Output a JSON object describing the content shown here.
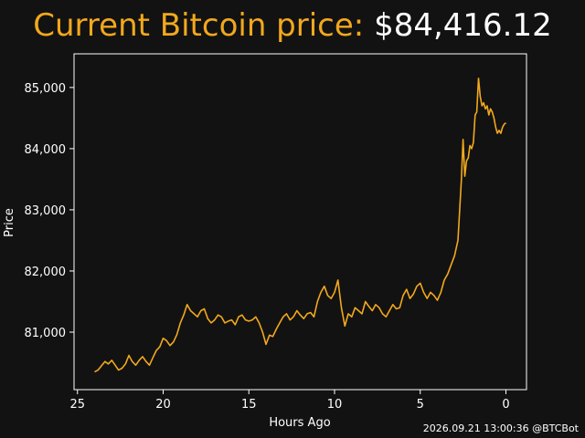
{
  "header": {
    "title_label": "Current Bitcoin price:",
    "title_price": "$84,416.12"
  },
  "footer": {
    "timestamp": "2026.09.21 13:00:36 @BTCBot"
  },
  "colors": {
    "background": "#121212",
    "line": "#f2a81d",
    "axes": "#ffffff",
    "title_label": "#f2a81d",
    "title_price": "#ffffff"
  },
  "chart_data": {
    "type": "line",
    "title": "Current Bitcoin price: $84,416.12",
    "xlabel": "Hours Ago",
    "ylabel": "Price",
    "x_reversed": true,
    "xlim": [
      25.2,
      -1.2
    ],
    "ylim": [
      80060,
      85550
    ],
    "x_ticks": [
      25,
      20,
      15,
      10,
      5,
      0
    ],
    "x_tick_labels": [
      "25",
      "20",
      "15",
      "10",
      "5",
      "0"
    ],
    "y_ticks": [
      81000,
      82000,
      83000,
      84000,
      85000
    ],
    "y_tick_labels": [
      "81,000",
      "82,000",
      "83,000",
      "84,000",
      "85,000"
    ],
    "grid": false,
    "legend": "none",
    "series": [
      {
        "x": [
          24.0,
          23.8,
          23.6,
          23.4,
          23.2,
          23.0,
          22.8,
          22.6,
          22.4,
          22.2,
          22.0,
          21.8,
          21.6,
          21.4,
          21.2,
          21.0,
          20.8,
          20.6,
          20.4,
          20.2,
          20.0,
          19.8,
          19.6,
          19.4,
          19.2,
          19.0,
          18.8,
          18.6,
          18.4,
          18.2,
          18.0,
          17.8,
          17.6,
          17.4,
          17.2,
          17.0,
          16.8,
          16.6,
          16.4,
          16.2,
          16.0,
          15.8,
          15.6,
          15.4,
          15.2,
          15.0,
          14.8,
          14.6,
          14.4,
          14.2,
          14.0,
          13.8,
          13.6,
          13.4,
          13.2,
          13.0,
          12.8,
          12.6,
          12.4,
          12.2,
          12.0,
          11.8,
          11.6,
          11.4,
          11.2,
          11.0,
          10.8,
          10.6,
          10.4,
          10.2,
          10.0,
          9.8,
          9.6,
          9.4,
          9.2,
          9.0,
          8.8,
          8.6,
          8.4,
          8.2,
          8.0,
          7.8,
          7.6,
          7.4,
          7.2,
          7.0,
          6.8,
          6.6,
          6.4,
          6.2,
          6.0,
          5.8,
          5.6,
          5.4,
          5.2,
          5.0,
          4.8,
          4.6,
          4.4,
          4.2,
          4.0,
          3.8,
          3.6,
          3.4,
          3.2,
          3.0,
          2.8,
          2.6,
          2.5,
          2.4,
          2.3,
          2.2,
          2.1,
          2.0,
          1.9,
          1.8,
          1.7,
          1.6,
          1.5,
          1.4,
          1.3,
          1.2,
          1.1,
          1.0,
          0.9,
          0.8,
          0.7,
          0.6,
          0.5,
          0.4,
          0.3,
          0.2,
          0.1,
          0.0
        ],
        "y": [
          80350,
          80380,
          80450,
          80520,
          80480,
          80540,
          80460,
          80380,
          80410,
          80480,
          80620,
          80520,
          80460,
          80540,
          80600,
          80520,
          80460,
          80580,
          80700,
          80760,
          80900,
          80860,
          80780,
          80840,
          80960,
          81150,
          81280,
          81450,
          81350,
          81300,
          81250,
          81350,
          81380,
          81220,
          81150,
          81200,
          81280,
          81250,
          81150,
          81180,
          81200,
          81120,
          81250,
          81280,
          81200,
          81180,
          81200,
          81250,
          81150,
          81000,
          80800,
          80950,
          80930,
          81050,
          81150,
          81250,
          81300,
          81200,
          81250,
          81350,
          81280,
          81220,
          81300,
          81320,
          81250,
          81500,
          81650,
          81750,
          81600,
          81550,
          81650,
          81850,
          81400,
          81100,
          81300,
          81250,
          81400,
          81350,
          81300,
          81500,
          81420,
          81350,
          81450,
          81400,
          81300,
          81250,
          81350,
          81450,
          81380,
          81400,
          81600,
          81700,
          81550,
          81620,
          81750,
          81800,
          81650,
          81550,
          81650,
          81600,
          81520,
          81650,
          81850,
          81950,
          82100,
          82250,
          82500,
          83500,
          84150,
          83550,
          83800,
          83850,
          84050,
          84000,
          84100,
          84550,
          84600,
          85150,
          84850,
          84700,
          84750,
          84650,
          84700,
          84550,
          84650,
          84600,
          84500,
          84350,
          84250,
          84300,
          84250,
          84350,
          84400,
          84420
        ]
      }
    ]
  }
}
